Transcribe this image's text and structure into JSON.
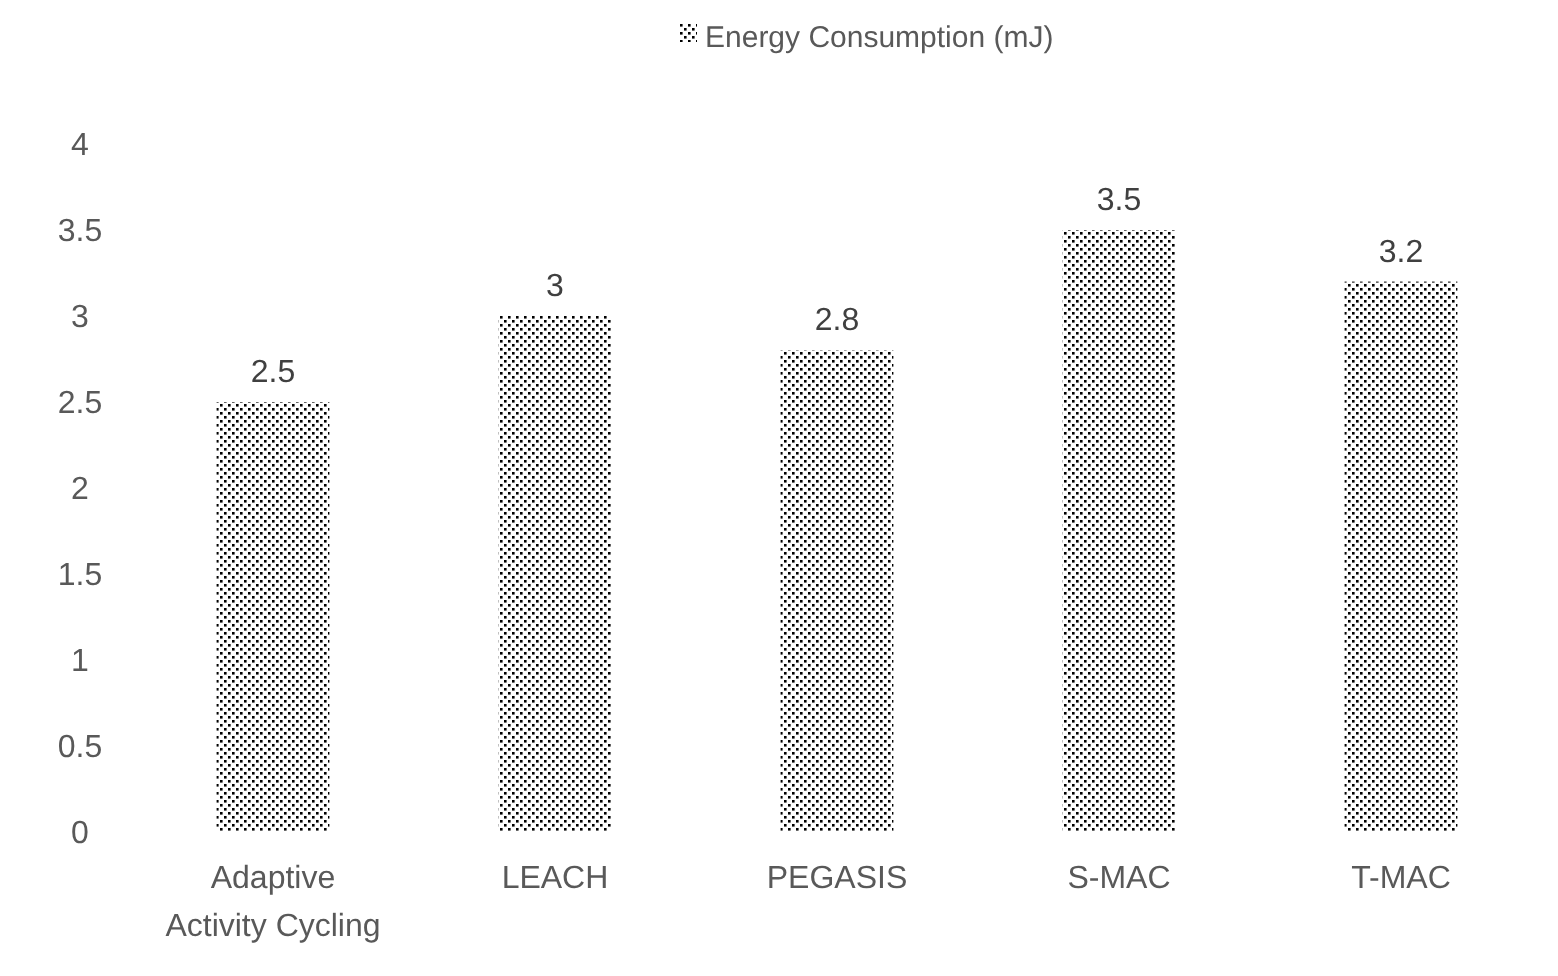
{
  "chart_data": {
    "type": "bar",
    "categories": [
      "Adaptive Activity Cycling",
      "LEACH",
      "PEGASIS",
      "S-MAC",
      "T-MAC"
    ],
    "series": [
      {
        "name": "Energy Consumption (mJ)",
        "color": "#000000",
        "values": [
          2.5,
          3,
          2.8,
          3.5,
          3.2
        ]
      }
    ],
    "ylim": [
      0,
      4
    ],
    "yticks": [
      0,
      0.5,
      1,
      1.5,
      2,
      2.5,
      3,
      3.5,
      4
    ],
    "grid": false,
    "legend": "top",
    "data_labels": true
  }
}
